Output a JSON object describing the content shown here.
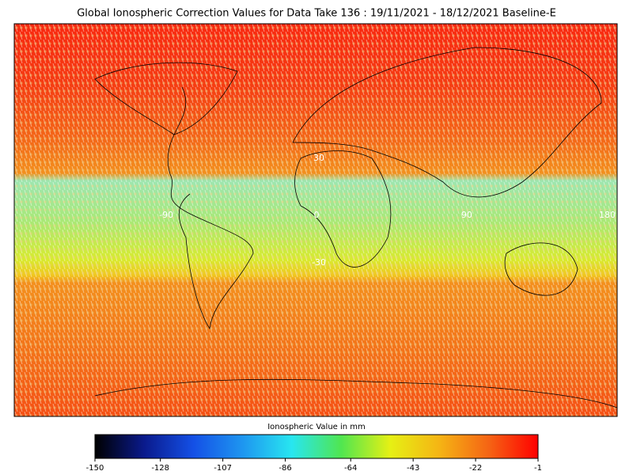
{
  "title": "Global Ionospheric Correction Values for Data Take 136 : 19/11/2021 - 18/12/2021 Baseline-E",
  "map": {
    "lon_labels": [
      -90,
      0,
      90,
      180
    ],
    "lat_labels": [
      30,
      -30
    ]
  },
  "colorbar": {
    "label": "Ionospheric Value in mm",
    "range": [
      -150,
      -1
    ],
    "ticks": [
      -150,
      -128,
      -107,
      -86,
      -64,
      -43,
      -22,
      -1
    ],
    "colors": [
      "#000000",
      "#0a1a8c",
      "#1450e6",
      "#1e96f0",
      "#28e6f0",
      "#50e650",
      "#e6f014",
      "#f5b414",
      "#f56414",
      "#ff0000"
    ]
  }
}
